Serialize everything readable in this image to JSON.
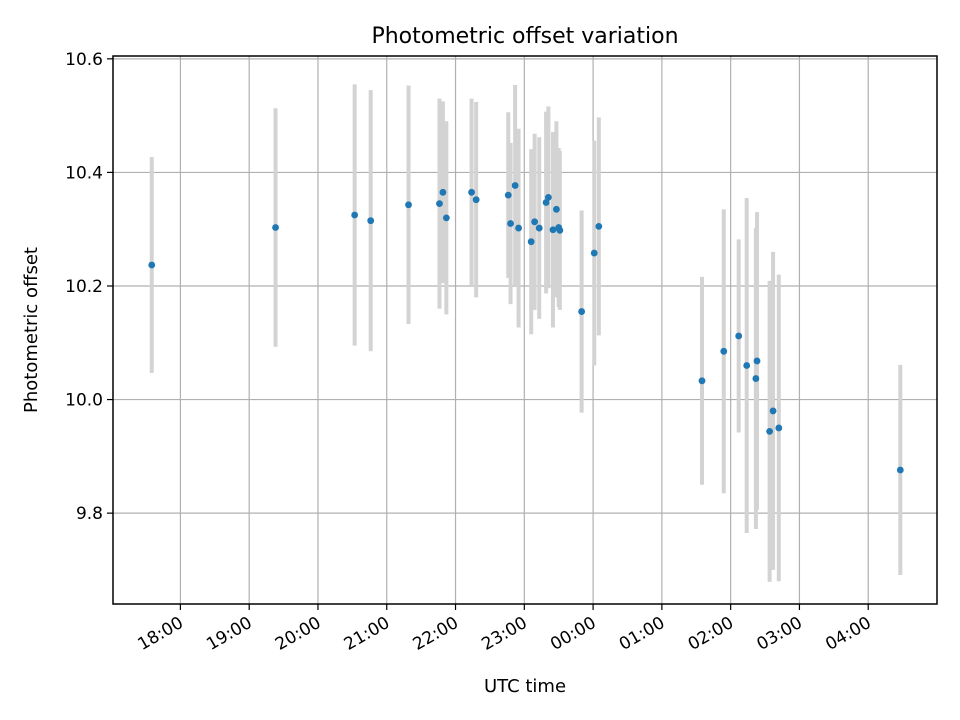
{
  "chart_data": {
    "type": "scatter",
    "title": "Photometric offset variation",
    "xlabel": "UTC time",
    "ylabel": "Photometric offset",
    "xlim": [
      "17:00",
      "05:00"
    ],
    "xlim_hours": [
      17.02,
      29.0
    ],
    "ylim": [
      9.64,
      10.605
    ],
    "x_ticks": [
      "18:00",
      "19:00",
      "20:00",
      "21:00",
      "22:00",
      "23:00",
      "00:00",
      "01:00",
      "02:00",
      "03:00",
      "04:00"
    ],
    "y_ticks": [
      "9.8",
      "10.0",
      "10.2",
      "10.4",
      "10.6"
    ],
    "grid": true,
    "point_color": "#1f77b4",
    "errorbar_color": "#d3d3d3",
    "points": [
      {
        "t": "17:35",
        "y": 10.237,
        "err": 0.19
      },
      {
        "t": "19:23",
        "y": 10.303,
        "err": 0.21
      },
      {
        "t": "20:32",
        "y": 10.325,
        "err": 0.23
      },
      {
        "t": "20:46",
        "y": 10.315,
        "err": 0.23
      },
      {
        "t": "21:19",
        "y": 10.343,
        "err": 0.21
      },
      {
        "t": "21:46",
        "y": 10.345,
        "err": 0.185
      },
      {
        "t": "21:49",
        "y": 10.365,
        "err": 0.16
      },
      {
        "t": "21:52",
        "y": 10.32,
        "err": 0.17
      },
      {
        "t": "22:14",
        "y": 10.365,
        "err": 0.165
      },
      {
        "t": "22:18",
        "y": 10.352,
        "err": 0.172
      },
      {
        "t": "22:46",
        "y": 10.36,
        "err": 0.146
      },
      {
        "t": "22:48",
        "y": 10.31,
        "err": 0.142
      },
      {
        "t": "22:52",
        "y": 10.377,
        "err": 0.177
      },
      {
        "t": "22:55",
        "y": 10.302,
        "err": 0.175
      },
      {
        "t": "23:06",
        "y": 10.278,
        "err": 0.163
      },
      {
        "t": "23:09",
        "y": 10.313,
        "err": 0.155
      },
      {
        "t": "23:13",
        "y": 10.302,
        "err": 0.16
      },
      {
        "t": "23:19",
        "y": 10.347,
        "err": 0.16
      },
      {
        "t": "23:21",
        "y": 10.356,
        "err": 0.16
      },
      {
        "t": "23:25",
        "y": 10.299,
        "err": 0.172
      },
      {
        "t": "23:28",
        "y": 10.335,
        "err": 0.155
      },
      {
        "t": "23:30",
        "y": 10.303,
        "err": 0.14
      },
      {
        "t": "23:31",
        "y": 10.298,
        "err": 0.14
      },
      {
        "t": "23:50",
        "y": 10.155,
        "err": 0.178
      },
      {
        "t": "00:01",
        "y": 10.258,
        "err": 0.198
      },
      {
        "t": "00:05",
        "y": 10.305,
        "err": 0.192
      },
      {
        "t": "01:35",
        "y": 10.033,
        "err": 0.183
      },
      {
        "t": "01:54",
        "y": 10.085,
        "err": 0.25
      },
      {
        "t": "02:07",
        "y": 10.112,
        "err": 0.17
      },
      {
        "t": "02:14",
        "y": 10.06,
        "err": 0.295
      },
      {
        "t": "02:22",
        "y": 10.037,
        "err": 0.265
      },
      {
        "t": "02:23",
        "y": 10.068,
        "err": 0.262
      },
      {
        "t": "02:34",
        "y": 9.944,
        "err": 0.265
      },
      {
        "t": "02:37",
        "y": 9.98,
        "err": 0.28
      },
      {
        "t": "02:42",
        "y": 9.95,
        "err": 0.27
      },
      {
        "t": "04:28",
        "y": 9.876,
        "err": 0.185
      }
    ]
  }
}
